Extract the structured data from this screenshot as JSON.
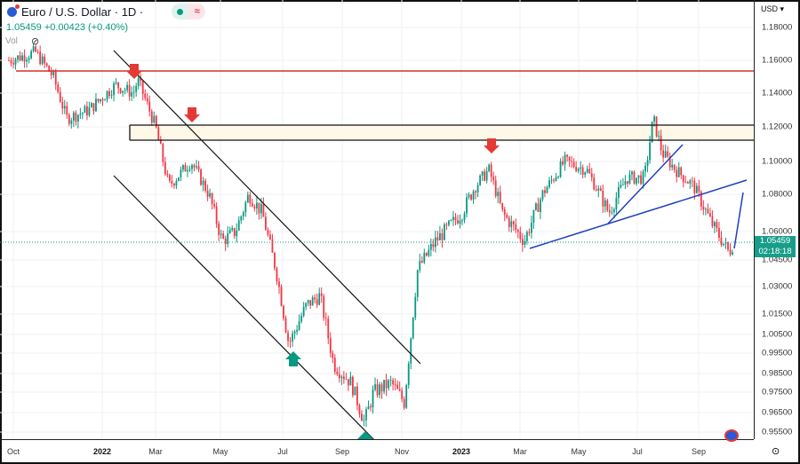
{
  "header": {
    "title": "Euro / U.S. Dollar · 1D ·",
    "quote": "1.05459 +0.00423 (+0.40%)",
    "vol_label": "Vol",
    "market_icon": "market-open-dot",
    "compare_icon": "approx-icon"
  },
  "price_axis": {
    "currency": "USD",
    "labels": [
      "1.18000",
      "1.16000",
      "1.14000",
      "1.12000",
      "1.10000",
      "1.08000",
      "1.06000",
      "1.04500",
      "1.03000",
      "1.01500",
      "1.00500",
      "0.99500",
      "0.98500",
      "0.97500",
      "0.96500",
      "0.95500"
    ],
    "last_price": "1.05459",
    "countdown": "02:18:18"
  },
  "time_axis": {
    "labels": [
      "Oct",
      "2022",
      "Mar",
      "May",
      "Jul",
      "Sep",
      "Nov",
      "2023",
      "Mar",
      "May",
      "Jul",
      "Sep"
    ]
  },
  "colors": {
    "up": "#089981",
    "down": "#f23645",
    "resistance": "#d32f2f",
    "trend": "#1e3fbf"
  },
  "chart_data": {
    "type": "candlestick",
    "symbol": "EURUSD",
    "interval": "1D",
    "x_unit": "months since Oct 2021",
    "approx_close_path": [
      [
        -0.15,
        1.16
      ],
      [
        0.75,
        1.165
      ],
      [
        1.34,
        1.15
      ],
      [
        1.79,
        1.125
      ],
      [
        2.54,
        1.13
      ],
      [
        3.43,
        1.145
      ],
      [
        4.03,
        1.14
      ],
      [
        4.18,
        1.148
      ],
      [
        4.78,
        1.12
      ],
      [
        5.22,
        1.085
      ],
      [
        5.97,
        1.1
      ],
      [
        6.57,
        1.08
      ],
      [
        7.01,
        1.055
      ],
      [
        7.46,
        1.06
      ],
      [
        7.91,
        1.08
      ],
      [
        8.36,
        1.07
      ],
      [
        8.81,
        1.04
      ],
      [
        9.25,
        1.0
      ],
      [
        9.85,
        1.02
      ],
      [
        10.3,
        1.025
      ],
      [
        10.75,
        0.99
      ],
      [
        11.34,
        0.98
      ],
      [
        11.79,
        0.96
      ],
      [
        12.09,
        0.975
      ],
      [
        12.69,
        0.98
      ],
      [
        13.13,
        0.97
      ],
      [
        13.58,
        1.04
      ],
      [
        14.18,
        1.055
      ],
      [
        15.07,
        1.07
      ],
      [
        15.52,
        1.085
      ],
      [
        15.97,
        1.095
      ],
      [
        16.42,
        1.07
      ],
      [
        17.16,
        1.055
      ],
      [
        17.76,
        1.08
      ],
      [
        18.51,
        1.1
      ],
      [
        19.25,
        1.095
      ],
      [
        20.0,
        1.07
      ],
      [
        20.6,
        1.09
      ],
      [
        21.19,
        1.09
      ],
      [
        21.49,
        1.125
      ],
      [
        21.79,
        1.105
      ],
      [
        22.24,
        1.095
      ],
      [
        22.84,
        1.085
      ],
      [
        23.43,
        1.065
      ],
      [
        24.03,
        1.049
      ],
      [
        24.2,
        1.05459
      ]
    ],
    "horizontal_levels": [
      1.153,
      1.121,
      1.113
    ]
  }
}
